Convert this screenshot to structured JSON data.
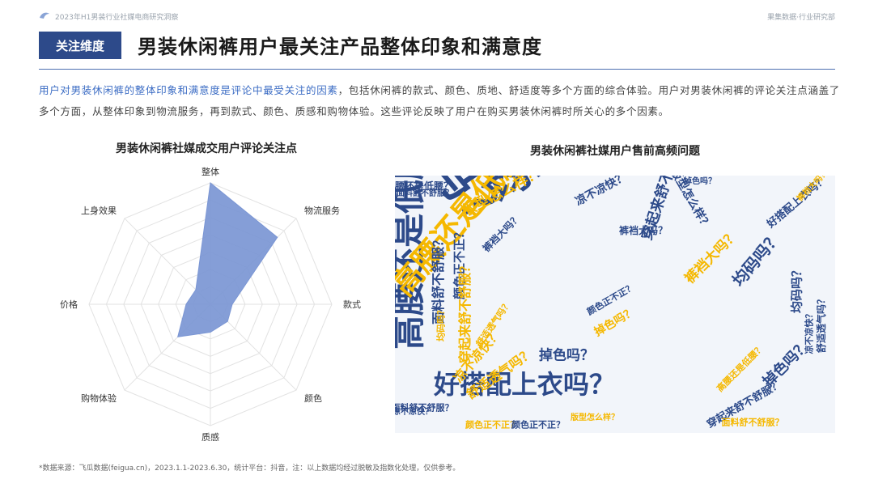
{
  "header": {
    "report_title": "2023年H1男装行业社媒电商研究洞察",
    "brand": "果集数据·行业研究部"
  },
  "section": {
    "badge": "关注维度",
    "title": "男装休闲裤用户最关注产品整体印象和满意度"
  },
  "description": {
    "highlight": "用户对男装休闲裤的整体印象和满意度是评论中最受关注的因素",
    "rest": "，包括休闲裤的款式、颜色、质地、舒适度等多个方面的综合体验。用户对男装休闲裤的评论关注点涵盖了多个方面，从整体印象到物流服务，再到款式、颜色、质感和购物体验。这些评论反映了用户在购买男装休闲裤时所关心的多个因素。"
  },
  "chart_data": [
    {
      "type": "radar",
      "title": "男装休闲裤社媒成交用户评论关注点",
      "categories": [
        "整体",
        "物流服务",
        "款式",
        "颜色",
        "质感",
        "购物体验",
        "价格",
        "上身效果"
      ],
      "values": [
        100,
        78,
        18,
        20,
        23,
        38,
        20,
        17
      ],
      "range": [
        0,
        100
      ],
      "rings": 7,
      "color": "#7b96d4"
    },
    {
      "type": "wordcloud",
      "title": "男装休闲裤社媒用户售前高频问题",
      "colors": {
        "blue": "#2d4a8a",
        "yellow": "#f5b800"
      }
    }
  ],
  "wordcloud_words": [
    {
      "text": "掉色吗？",
      "color": "blue"
    },
    {
      "text": "均码吗？",
      "color": "blue"
    },
    {
      "text": "高腰还是低腰？",
      "color": "blue"
    },
    {
      "text": "好搭配上衣吗？",
      "color": "blue"
    },
    {
      "text": "高腰还是低腰？",
      "color": "yellow"
    },
    {
      "text": "版型怎么样？",
      "color": "yellow"
    },
    {
      "text": "凉不凉快？",
      "color": "blue"
    },
    {
      "text": "穿起来舒不舒服？",
      "color": "blue"
    },
    {
      "text": "面料舒不舒服？",
      "color": "blue"
    },
    {
      "text": "颜色正不正？",
      "color": "blue"
    },
    {
      "text": "裤裆大吗？",
      "color": "blue"
    },
    {
      "text": "舒适透气吗？",
      "color": "yellow"
    },
    {
      "text": "掉色吗？",
      "color": "blue"
    },
    {
      "text": "均码吗？",
      "color": "blue"
    },
    {
      "text": "凉不凉快？",
      "color": "yellow"
    },
    {
      "text": "穿起来舒不舒服？",
      "color": "blue"
    },
    {
      "text": "掉色吗？",
      "color": "blue"
    },
    {
      "text": "面料舒不舒服？",
      "color": "blue"
    },
    {
      "text": "颜色正不正？",
      "color": "yellow"
    },
    {
      "text": "高腰还是低腰？",
      "color": "blue"
    },
    {
      "text": "版型怎么样？",
      "color": "blue"
    },
    {
      "text": "裤裆大吗？",
      "color": "yellow"
    },
    {
      "text": "均码吗？",
      "color": "blue"
    },
    {
      "text": "舒适透气吗？",
      "color": "blue"
    },
    {
      "text": "凉不凉快？",
      "color": "blue"
    },
    {
      "text": "面料舒不舒服？",
      "color": "yellow"
    },
    {
      "text": "颜色正不正？",
      "color": "blue"
    },
    {
      "text": "掉色吗？",
      "color": "yellow"
    },
    {
      "text": "穿起来舒不舒服？",
      "color": "yellow"
    },
    {
      "text": "好搭配上衣吗？",
      "color": "blue"
    },
    {
      "text": "裤裆大吗？",
      "color": "blue"
    },
    {
      "text": "舒适透气吗？",
      "color": "yellow"
    },
    {
      "text": "均码吗？",
      "color": "yellow"
    },
    {
      "text": "高腰还是低腰？",
      "color": "yellow"
    },
    {
      "text": "颜色正不正？",
      "color": "blue"
    },
    {
      "text": "面料舒不舒服？",
      "color": "blue"
    },
    {
      "text": "凉不凉快？",
      "color": "blue"
    },
    {
      "text": "版型怎么样？",
      "color": "yellow"
    },
    {
      "text": "掉色吗？",
      "color": "blue"
    },
    {
      "text": "裤裆大吗？",
      "color": "yellow"
    }
  ],
  "footer": {
    "source": "*数据来源：飞瓜数据(feigua.cn)，2023.1.1-2023.6.30，统计平台：抖音，注：以上数据均经过脱敏及指数化处理，仅供参考。"
  }
}
